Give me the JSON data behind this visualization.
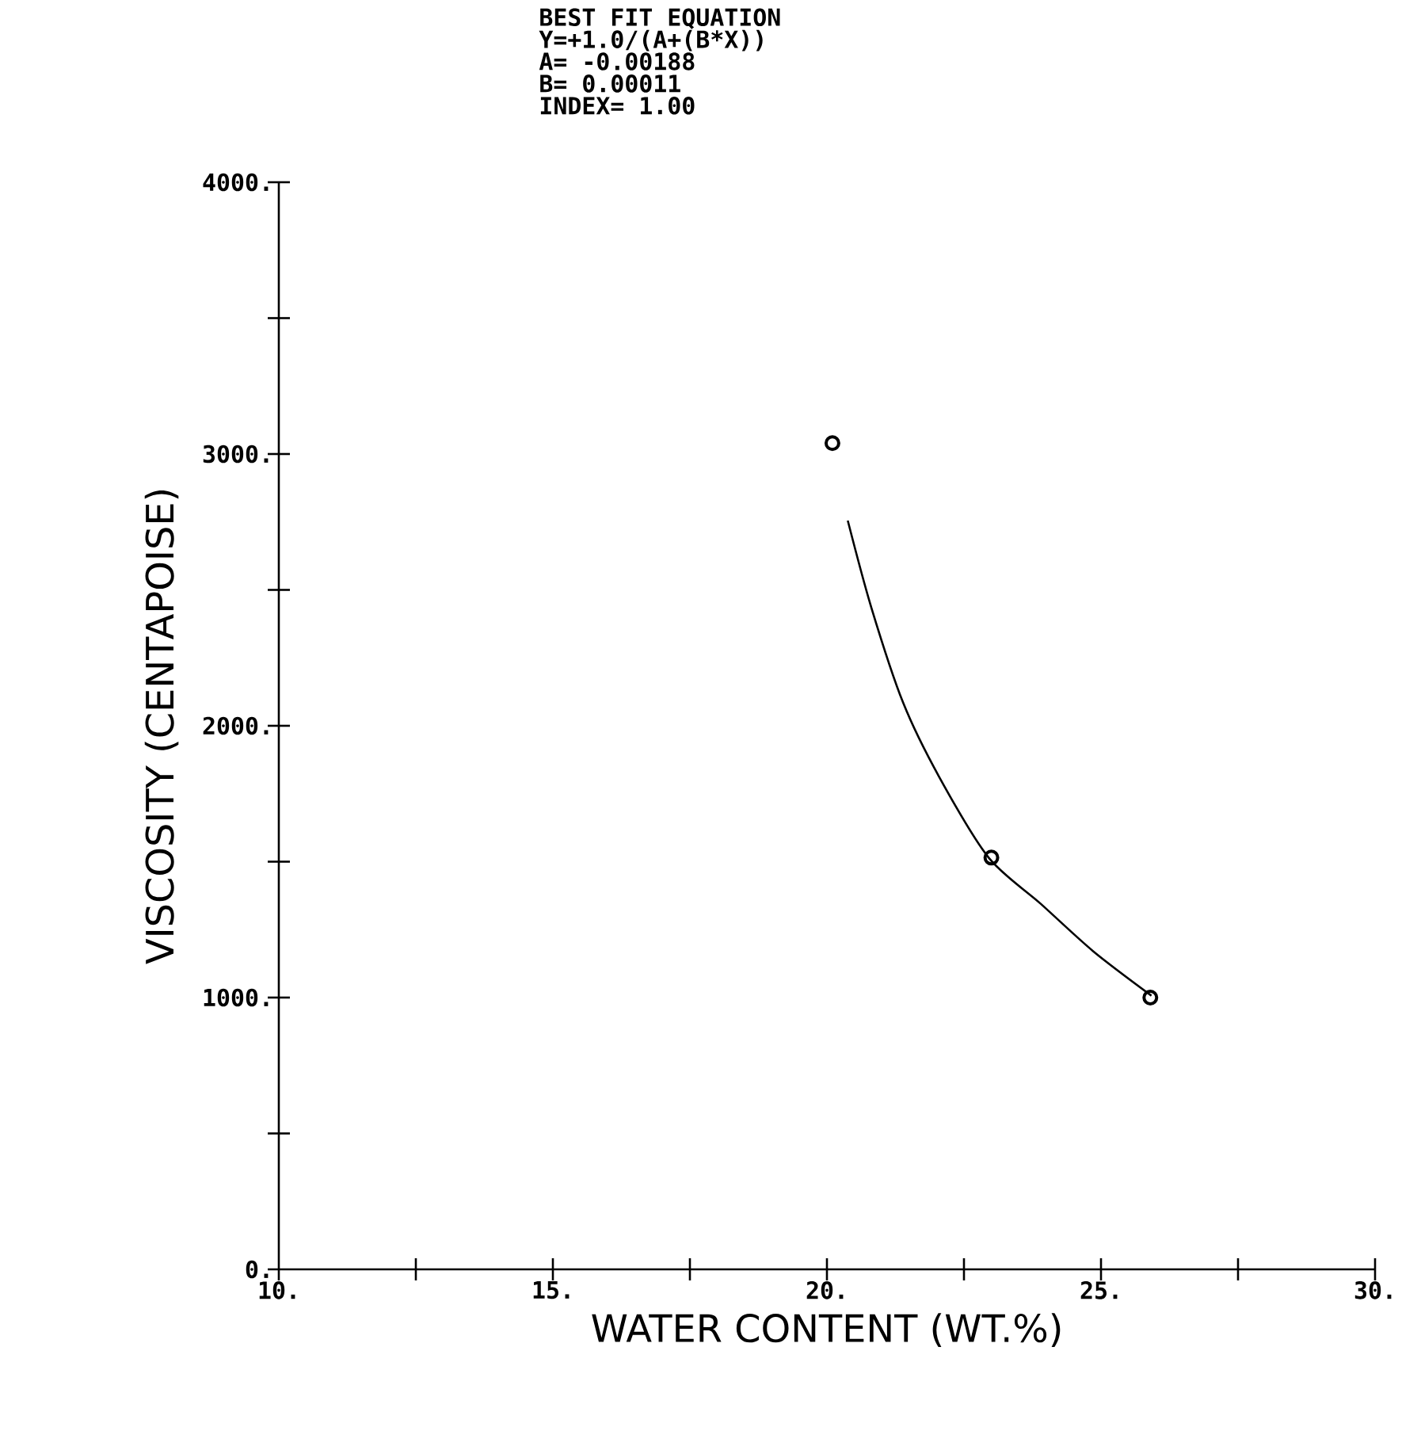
{
  "chart_data": {
    "type": "scatter",
    "annotations": [
      "BEST FIT EQUATION",
      "Y=+1.0/(A+(B*X))",
      "A= -0.00188",
      "B= 0.00011",
      "INDEX= 1.00"
    ],
    "xlabel": "WATER CONTENT  (WT.%)",
    "ylabel": "VISCOSITY  (CENTAPOISE)",
    "series": [
      {
        "type": "scatter",
        "marker": "circle",
        "color": "#000000",
        "x": [
          20.1,
          23.0,
          25.9
        ],
        "values": [
          3040,
          1515,
          1000
        ]
      },
      {
        "type": "line",
        "marker": "none",
        "line_style": "solid",
        "color": "#000000",
        "x": [
          20.38,
          20.81,
          21.39,
          22.05,
          22.95,
          23.9,
          24.86,
          25.92
        ],
        "values": [
          2755,
          2435,
          2085,
          1811,
          1515,
          1345,
          1170,
          1007
        ]
      }
    ],
    "xlim": [
      10,
      30
    ],
    "ylim": [
      0,
      4000
    ],
    "xticks": [
      {
        "value": 10,
        "label": "10."
      },
      {
        "value": 12.5,
        "label": null
      },
      {
        "value": 15,
        "label": "15."
      },
      {
        "value": 17.5,
        "label": null
      },
      {
        "value": 20,
        "label": "20."
      },
      {
        "value": 22.5,
        "label": null
      },
      {
        "value": 25,
        "label": "25."
      },
      {
        "value": 27.5,
        "label": null
      },
      {
        "value": 30,
        "label": "30."
      }
    ],
    "yticks": [
      {
        "value": 0,
        "label": "0."
      },
      {
        "value": 500,
        "label": null
      },
      {
        "value": 1000,
        "label": "1000."
      },
      {
        "value": 1500,
        "label": null
      },
      {
        "value": 2000,
        "label": "2000."
      },
      {
        "value": 2500,
        "label": null
      },
      {
        "value": 3000,
        "label": "3000."
      },
      {
        "value": 3500,
        "label": null
      },
      {
        "value": 4000,
        "label": "4000."
      }
    ]
  }
}
